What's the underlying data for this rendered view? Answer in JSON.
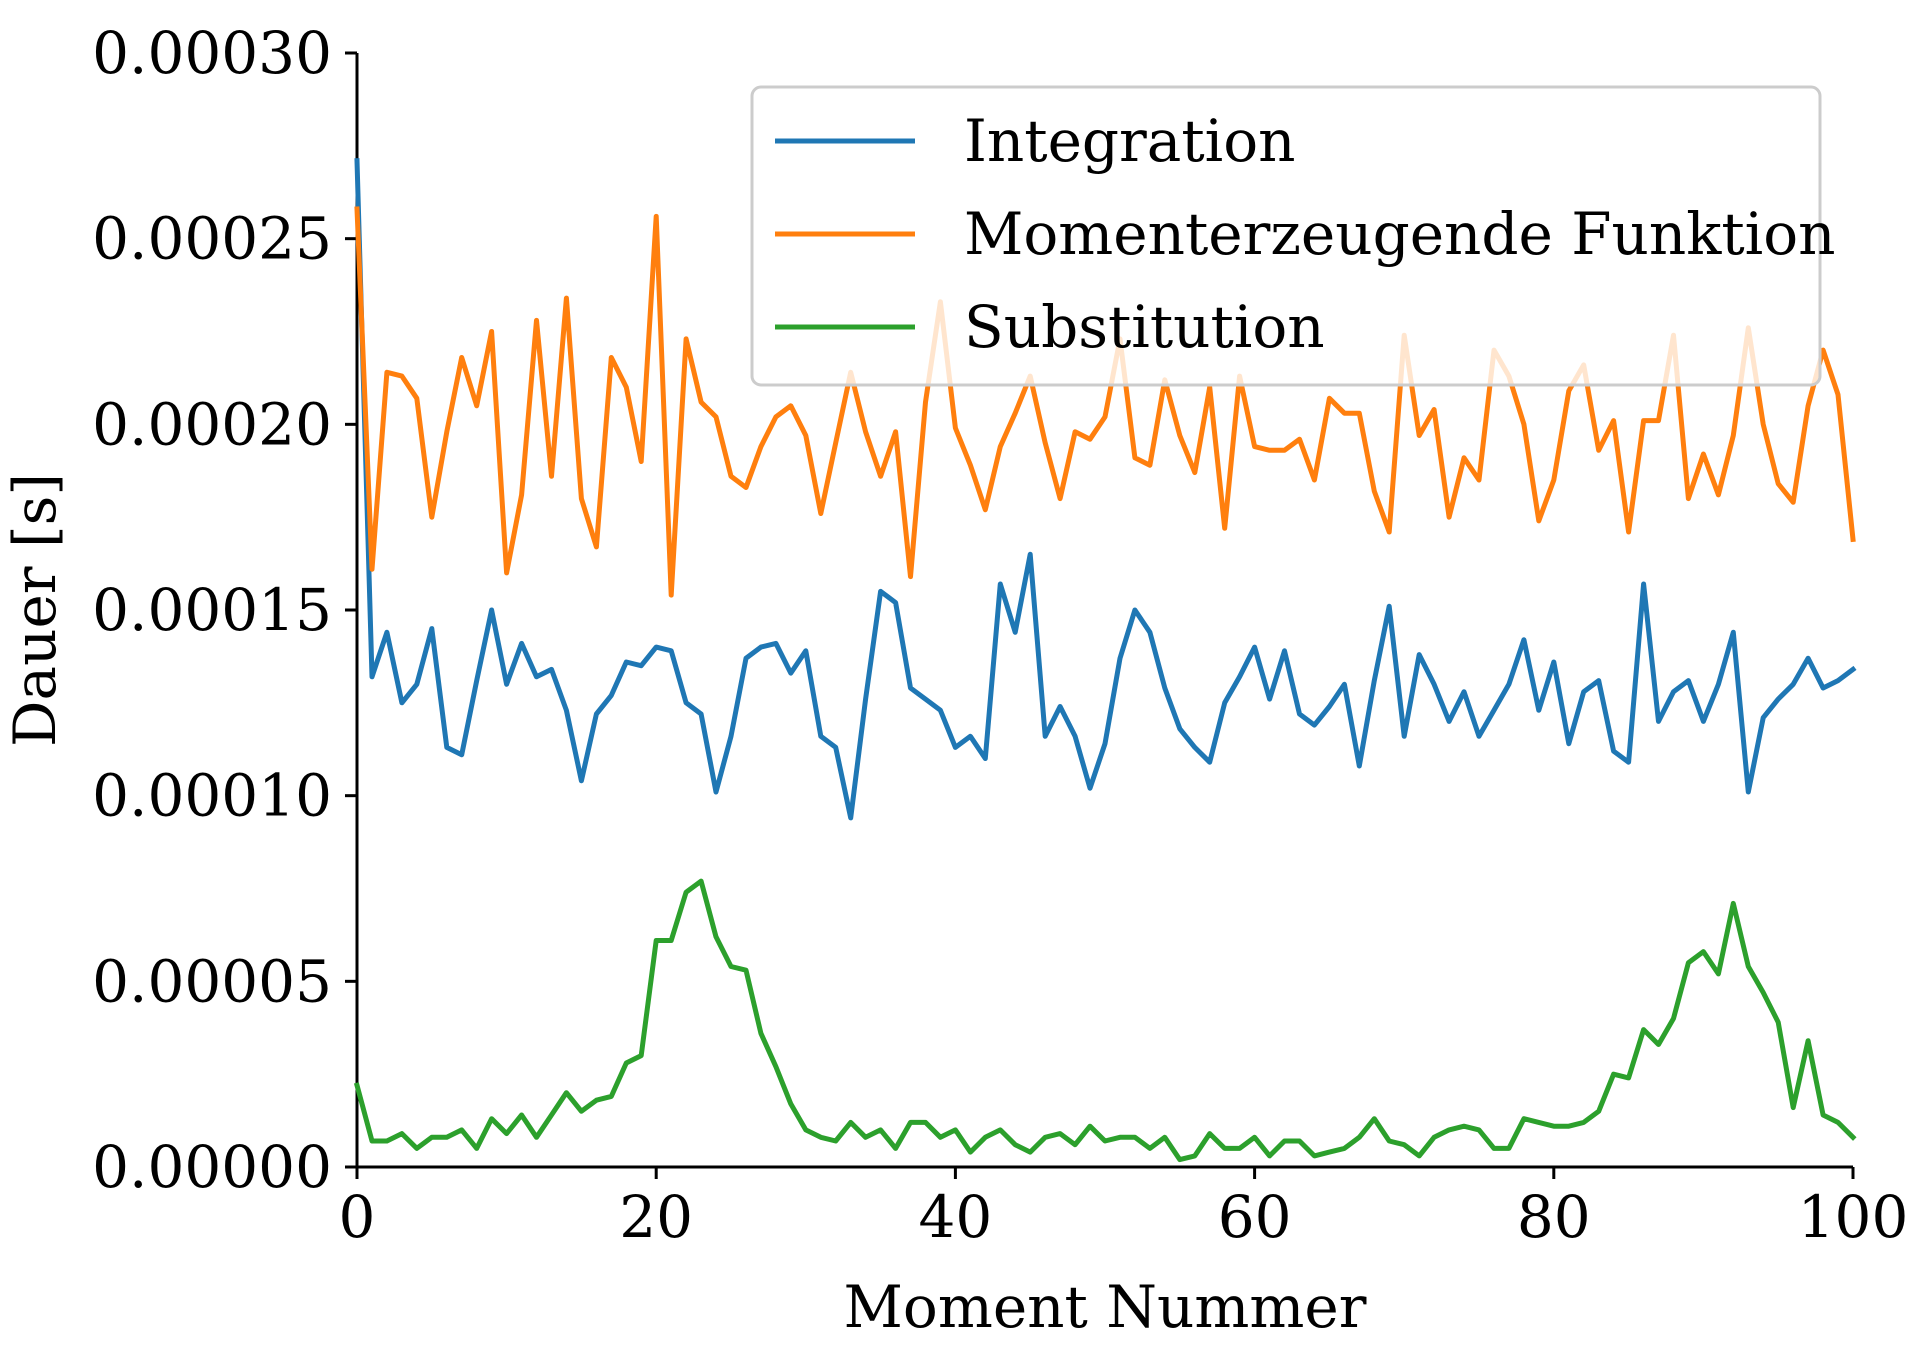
{
  "chart_data": {
    "type": "line",
    "title": "",
    "xlabel": "Moment Nummer",
    "ylabel": "Dauer [s]",
    "xlim": [
      0,
      100
    ],
    "ylim": [
      0,
      0.0003
    ],
    "xticks": [
      "0",
      "20",
      "40",
      "60",
      "80",
      "100"
    ],
    "yticks": [
      "0.00000",
      "0.00005",
      "0.00010",
      "0.00015",
      "0.00020",
      "0.00025",
      "0.00030"
    ],
    "grid": false,
    "legend_position": "top-right",
    "x": [
      0,
      1,
      2,
      3,
      4,
      5,
      6,
      7,
      8,
      9,
      10,
      11,
      12,
      13,
      14,
      15,
      16,
      17,
      18,
      19,
      20,
      21,
      22,
      23,
      24,
      25,
      26,
      27,
      28,
      29,
      30,
      31,
      32,
      33,
      34,
      35,
      36,
      37,
      38,
      39,
      40,
      41,
      42,
      43,
      44,
      45,
      46,
      47,
      48,
      49,
      50,
      51,
      52,
      53,
      54,
      55,
      56,
      57,
      58,
      59,
      60,
      61,
      62,
      63,
      64,
      65,
      66,
      67,
      68,
      69,
      70,
      71,
      72,
      73,
      74,
      75,
      76,
      77,
      78,
      79,
      80,
      81,
      82,
      83,
      84,
      85,
      86,
      87,
      88,
      89,
      90,
      91,
      92,
      93,
      94,
      95,
      96,
      97,
      98,
      99,
      100
    ],
    "series": [
      {
        "name": "Integration",
        "color": "#1f77b4",
        "values": [
          0.000271,
          0.000132,
          0.000144,
          0.000125,
          0.00013,
          0.000145,
          0.000113,
          0.000111,
          0.000131,
          0.00015,
          0.00013,
          0.000141,
          0.000132,
          0.000134,
          0.000123,
          0.000104,
          0.000122,
          0.000127,
          0.000136,
          0.000135,
          0.00014,
          0.000139,
          0.000125,
          0.000122,
          0.000101,
          0.000116,
          0.000137,
          0.00014,
          0.000141,
          0.000133,
          0.000139,
          0.000116,
          0.000113,
          9.4e-05,
          0.000126,
          0.000155,
          0.000152,
          0.000129,
          0.000126,
          0.000123,
          0.000113,
          0.000116,
          0.00011,
          0.000157,
          0.000144,
          0.000165,
          0.000116,
          0.000124,
          0.000116,
          0.000102,
          0.000114,
          0.000137,
          0.00015,
          0.000144,
          0.000129,
          0.000118,
          0.000113,
          0.000109,
          0.000125,
          0.000132,
          0.00014,
          0.000126,
          0.000139,
          0.000122,
          0.000119,
          0.000124,
          0.00013,
          0.000108,
          0.000131,
          0.000151,
          0.000116,
          0.000138,
          0.00013,
          0.00012,
          0.000128,
          0.000116,
          0.000123,
          0.00013,
          0.000142,
          0.000123,
          0.000136,
          0.000114,
          0.000128,
          0.000131,
          0.000112,
          0.000109,
          0.000157,
          0.00012,
          0.000128,
          0.000131,
          0.00012,
          0.00013,
          0.000144,
          0.000101,
          0.000121,
          0.000126,
          0.00013,
          0.000137,
          0.000129,
          0.000131,
          0.000134
        ]
      },
      {
        "name": "Momenterzeugende Funktion",
        "color": "#ff7f0e",
        "values": [
          0.000258,
          0.000161,
          0.000214,
          0.000213,
          0.000207,
          0.000175,
          0.000198,
          0.000218,
          0.000205,
          0.000225,
          0.00016,
          0.000181,
          0.000228,
          0.000186,
          0.000234,
          0.00018,
          0.000167,
          0.000218,
          0.00021,
          0.00019,
          0.000256,
          0.000154,
          0.000223,
          0.000206,
          0.000202,
          0.000186,
          0.000183,
          0.000194,
          0.000202,
          0.000205,
          0.000197,
          0.000176,
          0.000195,
          0.000214,
          0.000198,
          0.000186,
          0.000198,
          0.000159,
          0.000206,
          0.000233,
          0.000199,
          0.000189,
          0.000177,
          0.000194,
          0.000203,
          0.000213,
          0.000195,
          0.00018,
          0.000198,
          0.000196,
          0.000202,
          0.000223,
          0.000191,
          0.000189,
          0.000212,
          0.000197,
          0.000187,
          0.00021,
          0.000172,
          0.000213,
          0.000194,
          0.000193,
          0.000193,
          0.000196,
          0.000185,
          0.000207,
          0.000203,
          0.000203,
          0.000182,
          0.000171,
          0.000224,
          0.000197,
          0.000204,
          0.000175,
          0.000191,
          0.000185,
          0.00022,
          0.000213,
          0.0002,
          0.000174,
          0.000185,
          0.000209,
          0.000216,
          0.000193,
          0.000201,
          0.000171,
          0.000201,
          0.000201,
          0.000224,
          0.00018,
          0.000192,
          0.000181,
          0.000197,
          0.000226,
          0.0002,
          0.000184,
          0.000179,
          0.000205,
          0.00022,
          0.000208,
          0.000169
        ]
      },
      {
        "name": "Substitution",
        "color": "#2ca02c",
        "values": [
          2.2e-05,
          7e-06,
          7e-06,
          9e-06,
          5e-06,
          8e-06,
          8e-06,
          1e-05,
          5e-06,
          1.3e-05,
          9e-06,
          1.4e-05,
          8e-06,
          1.4e-05,
          2e-05,
          1.5e-05,
          1.8e-05,
          1.9e-05,
          2.8e-05,
          3e-05,
          6.1e-05,
          6.1e-05,
          7.4e-05,
          7.7e-05,
          6.2e-05,
          5.4e-05,
          5.3e-05,
          3.6e-05,
          2.7e-05,
          1.7e-05,
          1e-05,
          8e-06,
          7e-06,
          1.2e-05,
          8e-06,
          1e-05,
          5e-06,
          1.2e-05,
          1.2e-05,
          8e-06,
          1e-05,
          4e-06,
          8e-06,
          1e-05,
          6e-06,
          4e-06,
          8e-06,
          9e-06,
          6e-06,
          1.1e-05,
          7e-06,
          8e-06,
          8e-06,
          5e-06,
          8e-06,
          2e-06,
          3e-06,
          9e-06,
          5e-06,
          5e-06,
          8e-06,
          3e-06,
          7e-06,
          7e-06,
          3e-06,
          4e-06,
          5e-06,
          8e-06,
          1.3e-05,
          7e-06,
          6e-06,
          3e-06,
          8e-06,
          1e-05,
          1.1e-05,
          1e-05,
          5e-06,
          5e-06,
          1.3e-05,
          1.2e-05,
          1.1e-05,
          1.1e-05,
          1.2e-05,
          1.5e-05,
          2.5e-05,
          2.4e-05,
          3.7e-05,
          3.3e-05,
          4e-05,
          5.5e-05,
          5.8e-05,
          5.2e-05,
          7.1e-05,
          5.4e-05,
          4.7e-05,
          3.9e-05,
          1.6e-05,
          3.4e-05,
          1.4e-05,
          1.2e-05,
          8e-06
        ]
      }
    ]
  }
}
